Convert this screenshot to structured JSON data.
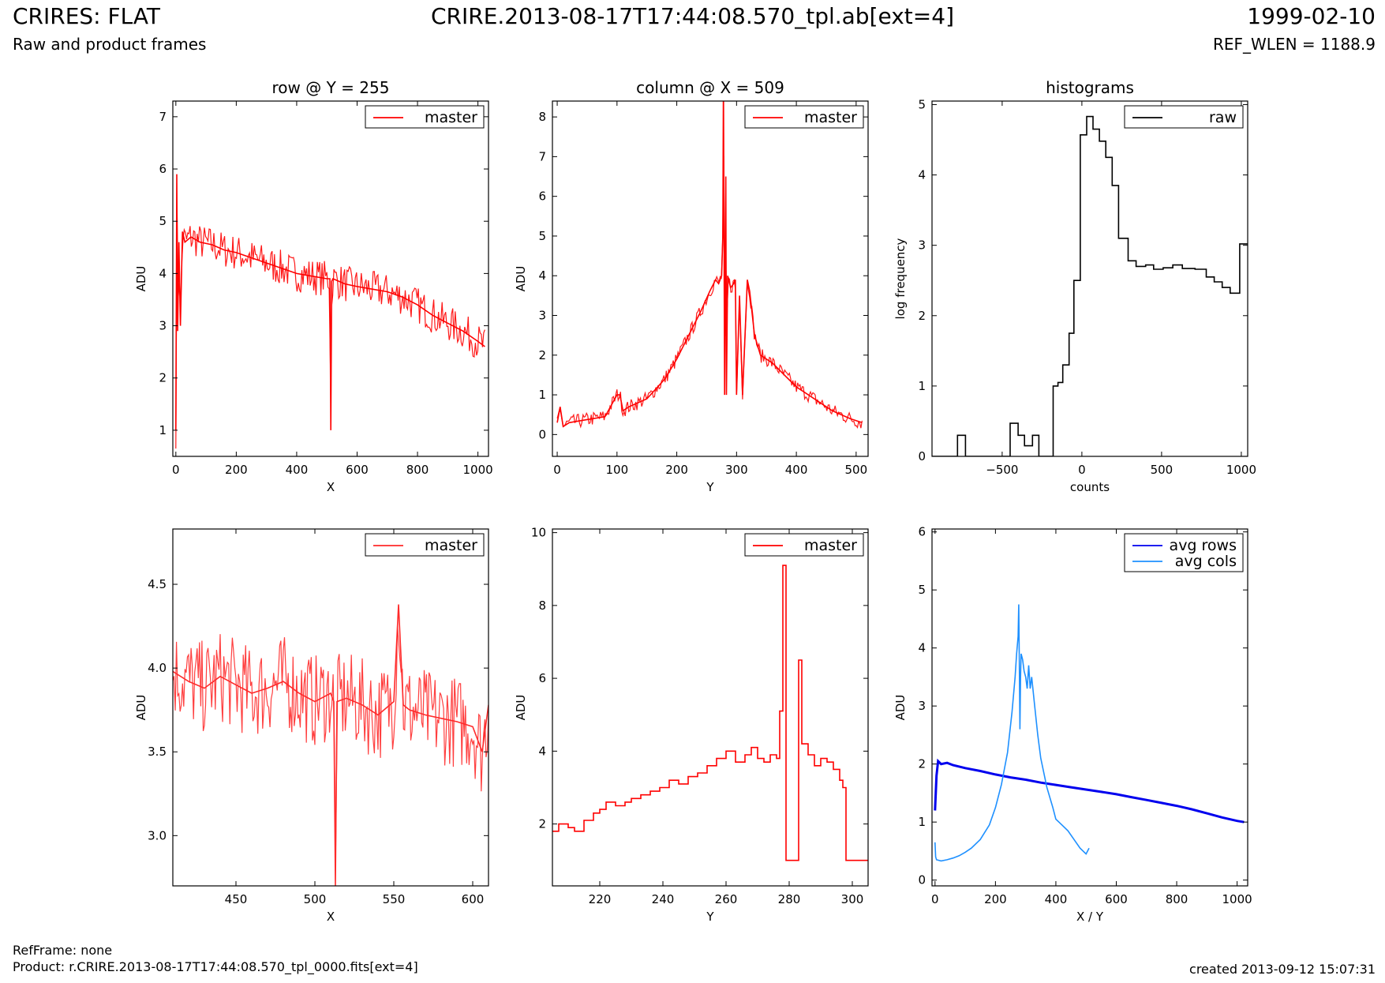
{
  "header": {
    "title": "CRIRES: FLAT",
    "subtitle": "Raw and product frames",
    "file": "CRIRE.2013-08-17T17:44:08.570_tpl.ab[ext=4]",
    "date": "1999-02-10",
    "ref_wlen": "REF_WLEN = 1188.9"
  },
  "footer": {
    "ref_frame": "RefFrame: none",
    "product": "Product: r.CRIRE.2013-08-17T17:44:08.570_tpl_0000.fits[ext=4]",
    "created": "created 2013-09-12 15:07:31"
  },
  "colors": {
    "master": "#ff0000",
    "master_zoom": "#ff2a2a",
    "raw": "#000000",
    "avg_rows": "#0000ee",
    "avg_cols": "#1e90ff"
  },
  "chart_data": [
    {
      "id": "row",
      "type": "line",
      "title": "row @ Y = 255",
      "xlabel": "X",
      "ylabel": "ADU",
      "xlim": [
        -10,
        1035
      ],
      "ylim": [
        0.5,
        7.3
      ],
      "xticks": [
        0,
        200,
        400,
        600,
        800,
        1000
      ],
      "yticks": [
        1,
        2,
        3,
        4,
        5,
        6,
        7
      ],
      "ytick_labels": [
        "1",
        "2",
        "3",
        "4",
        "5",
        "6",
        "7"
      ],
      "legend": "top-right",
      "series": [
        {
          "name": "master",
          "color": "#ff0000",
          "x": [
            0,
            3,
            6,
            10,
            15,
            22,
            30,
            50,
            80,
            120,
            160,
            200,
            250,
            300,
            350,
            400,
            450,
            500,
            510,
            513,
            516,
            520,
            560,
            600,
            650,
            700,
            750,
            800,
            850,
            900,
            950,
            1000,
            1023
          ],
          "y": [
            1.0,
            5.9,
            2.9,
            4.6,
            3.0,
            4.8,
            4.6,
            4.7,
            4.6,
            4.55,
            4.45,
            4.4,
            4.3,
            4.2,
            4.1,
            4.0,
            3.95,
            3.9,
            3.9,
            1.0,
            3.85,
            3.9,
            3.8,
            3.75,
            3.7,
            3.65,
            3.55,
            3.4,
            3.2,
            3.05,
            2.9,
            2.7,
            2.6
          ]
        }
      ]
    },
    {
      "id": "column",
      "type": "line",
      "title": "column @ X = 509",
      "xlabel": "Y",
      "ylabel": "ADU",
      "xlim": [
        -8,
        520
      ],
      "ylim": [
        -0.55,
        8.4
      ],
      "xticks": [
        0,
        100,
        200,
        300,
        400,
        500
      ],
      "yticks": [
        0,
        1,
        2,
        3,
        4,
        5,
        6,
        7,
        8
      ],
      "ytick_labels": [
        "0",
        "1",
        "2",
        "3",
        "4",
        "5",
        "6",
        "7",
        "8"
      ],
      "legend": "top-right",
      "series": [
        {
          "name": "master",
          "color": "#ff0000",
          "x": [
            0,
            5,
            10,
            20,
            40,
            60,
            80,
            100,
            105,
            110,
            120,
            150,
            180,
            200,
            220,
            240,
            255,
            265,
            270,
            275,
            277,
            278,
            280,
            282,
            283,
            285,
            290,
            295,
            298,
            300,
            305,
            310,
            318,
            322,
            330,
            340,
            360,
            380,
            400,
            430,
            460,
            490,
            510
          ],
          "y": [
            0.3,
            0.7,
            0.2,
            0.3,
            0.35,
            0.4,
            0.45,
            1.0,
            1.0,
            0.6,
            0.7,
            0.9,
            1.4,
            1.9,
            2.5,
            3.1,
            3.6,
            3.9,
            3.8,
            4.0,
            5.0,
            9.0,
            1.0,
            6.5,
            1.0,
            4.0,
            3.7,
            3.8,
            3.9,
            1.0,
            3.5,
            1.0,
            3.9,
            3.6,
            2.5,
            2.0,
            1.8,
            1.5,
            1.2,
            0.9,
            0.6,
            0.4,
            0.3
          ]
        }
      ]
    },
    {
      "id": "histograms",
      "type": "line",
      "title": "histograms",
      "xlabel": "counts",
      "ylabel": "log frequency",
      "xlim": [
        -940,
        1040
      ],
      "ylim": [
        0,
        5.05
      ],
      "xticks": [
        -500,
        0,
        500,
        1000
      ],
      "xtick_labels": [
        "−500",
        "0",
        "500",
        "1000"
      ],
      "yticks": [
        0,
        1,
        2,
        3,
        4,
        5
      ],
      "ytick_labels": [
        "0",
        "1",
        "2",
        "3",
        "4",
        "5"
      ],
      "legend": "top-right",
      "step": "post",
      "series": [
        {
          "name": "raw",
          "color": "#000000",
          "x": [
            -940,
            -780,
            -730,
            -700,
            -650,
            -500,
            -450,
            -400,
            -360,
            -310,
            -270,
            -220,
            -180,
            -150,
            -120,
            -80,
            -50,
            -10,
            30,
            70,
            110,
            150,
            190,
            230,
            290,
            340,
            400,
            450,
            510,
            570,
            630,
            710,
            780,
            830,
            880,
            930,
            990,
            1040
          ],
          "y": [
            0,
            0.3,
            0,
            0,
            0,
            0,
            0.47,
            0.3,
            0.15,
            0.3,
            0,
            0,
            1.0,
            1.05,
            1.3,
            1.75,
            2.5,
            4.57,
            4.83,
            4.65,
            4.48,
            4.25,
            3.85,
            3.1,
            2.78,
            2.7,
            2.72,
            2.66,
            2.68,
            2.72,
            2.67,
            2.66,
            2.55,
            2.48,
            2.4,
            2.32,
            3.02,
            3.02
          ]
        }
      ]
    },
    {
      "id": "row-zoom",
      "type": "line",
      "xlabel": "X",
      "ylabel": "ADU",
      "xlim": [
        410,
        610
      ],
      "ylim": [
        2.7,
        4.83
      ],
      "xticks": [
        450,
        500,
        550,
        600
      ],
      "yticks": [
        3.0,
        3.5,
        4.0,
        4.5
      ],
      "ytick_labels": [
        "3.0",
        "3.5",
        "4.0",
        "4.5"
      ],
      "legend": "top-right",
      "series": [
        {
          "name": "master",
          "color": "#ff2a2a",
          "x": [
            410,
            420,
            430,
            440,
            450,
            460,
            470,
            480,
            490,
            500,
            510,
            512,
            513,
            514,
            520,
            530,
            540,
            550,
            553,
            556,
            560,
            570,
            580,
            590,
            600,
            606,
            610
          ],
          "y": [
            3.98,
            3.92,
            3.88,
            3.95,
            3.9,
            3.85,
            3.88,
            3.92,
            3.85,
            3.8,
            3.85,
            3.8,
            2.7,
            3.8,
            3.82,
            3.78,
            3.72,
            3.8,
            4.38,
            3.78,
            3.75,
            3.72,
            3.7,
            3.68,
            3.65,
            3.5,
            3.78
          ]
        }
      ]
    },
    {
      "id": "column-zoom",
      "type": "line",
      "xlabel": "Y",
      "ylabel": "ADU",
      "xlim": [
        205,
        305
      ],
      "ylim": [
        0.3,
        10.1
      ],
      "xticks": [
        220,
        240,
        260,
        280,
        300
      ],
      "yticks": [
        2,
        4,
        6,
        8,
        10
      ],
      "ytick_labels": [
        "2",
        "4",
        "6",
        "8",
        "10"
      ],
      "legend": "top-right",
      "step": "post",
      "series": [
        {
          "name": "master",
          "color": "#ff0000",
          "x": [
            205,
            207,
            210,
            212,
            215,
            218,
            220,
            222,
            225,
            228,
            230,
            233,
            236,
            239,
            242,
            245,
            248,
            251,
            254,
            257,
            260,
            263,
            266,
            268,
            270,
            272,
            274,
            276,
            277,
            278,
            279,
            280,
            281,
            282,
            283,
            284,
            286,
            288,
            290,
            292,
            294,
            296,
            297,
            298,
            305
          ],
          "y": [
            1.8,
            2.0,
            1.9,
            1.8,
            2.1,
            2.3,
            2.4,
            2.6,
            2.5,
            2.6,
            2.7,
            2.8,
            2.9,
            3.0,
            3.2,
            3.1,
            3.3,
            3.4,
            3.6,
            3.8,
            4.0,
            3.7,
            3.9,
            4.1,
            3.8,
            3.7,
            3.9,
            3.8,
            5.1,
            9.1,
            1.0,
            1.0,
            1.0,
            1.0,
            6.5,
            4.2,
            3.9,
            3.6,
            3.8,
            3.7,
            3.5,
            3.2,
            3.0,
            1.0,
            1.0
          ]
        }
      ]
    },
    {
      "id": "averages",
      "type": "line",
      "xlabel": "X / Y",
      "ylabel": "ADU",
      "xlim": [
        -10,
        1035
      ],
      "ylim": [
        -0.1,
        6.05
      ],
      "xticks": [
        0,
        200,
        400,
        600,
        800,
        1000
      ],
      "yticks": [
        0,
        1,
        2,
        3,
        4,
        5,
        6
      ],
      "ytick_labels": [
        "0",
        "1",
        "2",
        "3",
        "4",
        "5",
        "6"
      ],
      "legend": "top-right",
      "series": [
        {
          "name": "avg rows",
          "color": "#0000ee",
          "x": [
            0,
            5,
            10,
            20,
            40,
            60,
            100,
            150,
            200,
            250,
            300,
            350,
            400,
            450,
            500,
            550,
            600,
            650,
            700,
            750,
            800,
            850,
            900,
            950,
            1000,
            1023
          ],
          "y": [
            1.2,
            1.8,
            2.05,
            2.0,
            2.02,
            1.98,
            1.93,
            1.88,
            1.82,
            1.77,
            1.73,
            1.68,
            1.64,
            1.6,
            1.56,
            1.52,
            1.48,
            1.43,
            1.38,
            1.33,
            1.28,
            1.22,
            1.15,
            1.08,
            1.02,
            1.0
          ]
        },
        {
          "name": "avg cols",
          "color": "#1e90ff",
          "x": [
            0,
            2,
            5,
            20,
            40,
            60,
            80,
            100,
            120,
            150,
            180,
            200,
            220,
            240,
            255,
            265,
            270,
            275,
            277,
            279,
            281,
            283,
            285,
            290,
            295,
            300,
            305,
            310,
            315,
            320,
            330,
            340,
            350,
            370,
            390,
            400,
            420,
            440,
            460,
            480,
            500,
            510
          ],
          "y": [
            0.65,
            0.4,
            0.35,
            0.33,
            0.35,
            0.38,
            0.42,
            0.48,
            0.55,
            0.7,
            0.95,
            1.25,
            1.65,
            2.2,
            2.9,
            3.5,
            3.9,
            4.2,
            4.75,
            3.8,
            2.6,
            3.5,
            3.9,
            3.8,
            3.6,
            3.5,
            3.3,
            3.7,
            3.3,
            3.5,
            3.0,
            2.5,
            2.1,
            1.6,
            1.25,
            1.05,
            0.95,
            0.85,
            0.7,
            0.55,
            0.45,
            0.55
          ]
        }
      ]
    }
  ]
}
